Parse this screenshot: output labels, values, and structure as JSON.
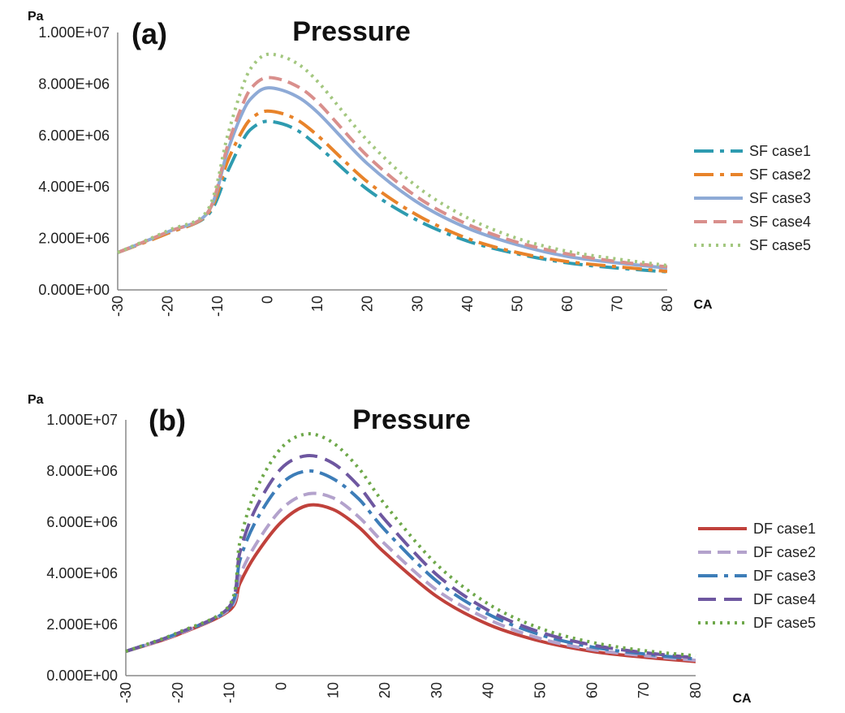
{
  "chart_data": [
    {
      "type": "line",
      "panel_label": "(a)",
      "title": "Pressure",
      "ylabel": "Pa",
      "xlabel": "CA",
      "xlim": [
        -30,
        80
      ],
      "ylim": [
        0,
        10000000
      ],
      "xticks": [
        "-30",
        "-20",
        "-10",
        "0",
        "10",
        "20",
        "30",
        "40",
        "50",
        "60",
        "70",
        "80"
      ],
      "yticks": [
        "0.000E+00",
        "2.000E+06",
        "4.000E+06",
        "6.000E+06",
        "8.000E+06",
        "1.000E+07"
      ],
      "legend_position": "right",
      "x": [
        -30,
        -20,
        -12,
        -8,
        -5,
        -3,
        0,
        5,
        10,
        20,
        30,
        40,
        50,
        60,
        70,
        80
      ],
      "series": [
        {
          "name": "SF case1",
          "color": "#2e9bb0",
          "dash": "long-dash-dot",
          "values": [
            1.45,
            2.2,
            2.9,
            4.6,
            5.8,
            6.3,
            6.55,
            6.3,
            5.6,
            3.9,
            2.7,
            1.9,
            1.4,
            1.05,
            0.85,
            0.7
          ]
        },
        {
          "name": "SF case2",
          "color": "#e8832a",
          "dash": "long-dash-dot",
          "values": [
            1.45,
            2.2,
            2.95,
            5.0,
            6.2,
            6.7,
            6.95,
            6.7,
            6.0,
            4.2,
            2.9,
            2.0,
            1.45,
            1.1,
            0.9,
            0.72
          ]
        },
        {
          "name": "SF case3",
          "color": "#8eaad6",
          "dash": "solid",
          "values": [
            1.45,
            2.25,
            3.0,
            5.4,
            6.9,
            7.5,
            7.85,
            7.6,
            6.9,
            4.9,
            3.4,
            2.4,
            1.75,
            1.3,
            1.05,
            0.85
          ]
        },
        {
          "name": "SF case4",
          "color": "#d98f8c",
          "dash": "dashed",
          "values": [
            1.45,
            2.25,
            3.0,
            5.6,
            7.2,
            7.9,
            8.25,
            8.0,
            7.3,
            5.2,
            3.6,
            2.55,
            1.85,
            1.4,
            1.1,
            0.9
          ]
        },
        {
          "name": "SF case5",
          "color": "#a3c77f",
          "dash": "dotted",
          "values": [
            1.45,
            2.3,
            3.1,
            6.0,
            7.9,
            8.7,
            9.15,
            8.9,
            8.1,
            5.8,
            4.0,
            2.8,
            2.0,
            1.5,
            1.2,
            0.95
          ]
        }
      ]
    },
    {
      "type": "line",
      "panel_label": "(b)",
      "title": "Pressure",
      "ylabel": "Pa",
      "xlabel": "CA",
      "xlim": [
        -30,
        80
      ],
      "ylim": [
        0,
        10000000
      ],
      "xticks": [
        "-30",
        "-20",
        "-10",
        "0",
        "10",
        "20",
        "30",
        "40",
        "50",
        "60",
        "70",
        "80"
      ],
      "yticks": [
        "0.000E+00",
        "2.000E+06",
        "4.000E+06",
        "6.000E+06",
        "8.000E+06",
        "1.000E+07"
      ],
      "legend_position": "right",
      "x": [
        -30,
        -20,
        -10,
        -8,
        -5,
        0,
        5,
        10,
        15,
        20,
        30,
        40,
        50,
        60,
        70,
        80
      ],
      "series": [
        {
          "name": "DF case1",
          "color": "#c0413b",
          "dash": "solid",
          "values": [
            0.95,
            1.6,
            2.55,
            3.6,
            4.7,
            6.0,
            6.65,
            6.5,
            5.8,
            4.8,
            3.1,
            2.0,
            1.35,
            0.95,
            0.72,
            0.55
          ]
        },
        {
          "name": "DF case2",
          "color": "#b3a2cc",
          "dash": "dashed",
          "values": [
            0.95,
            1.62,
            2.6,
            3.9,
            5.1,
            6.5,
            7.1,
            6.95,
            6.2,
            5.15,
            3.35,
            2.2,
            1.45,
            1.02,
            0.78,
            0.6
          ]
        },
        {
          "name": "DF case3",
          "color": "#3d7db8",
          "dash": "long-dash-dot",
          "values": [
            0.95,
            1.65,
            2.65,
            4.5,
            6.0,
            7.5,
            8.0,
            7.7,
            6.9,
            5.7,
            3.7,
            2.4,
            1.6,
            1.12,
            0.85,
            0.65
          ]
        },
        {
          "name": "DF case4",
          "color": "#6e57a0",
          "dash": "long-dash",
          "values": [
            0.95,
            1.65,
            2.7,
            4.8,
            6.5,
            8.1,
            8.6,
            8.3,
            7.4,
            6.1,
            3.95,
            2.55,
            1.7,
            1.2,
            0.9,
            0.7
          ]
        },
        {
          "name": "DF case5",
          "color": "#6ea84a",
          "dash": "dotted",
          "values": [
            0.95,
            1.68,
            2.75,
            5.2,
            7.2,
            8.9,
            9.45,
            9.1,
            8.1,
            6.7,
            4.35,
            2.8,
            1.85,
            1.3,
            0.98,
            0.78
          ]
        }
      ]
    }
  ]
}
